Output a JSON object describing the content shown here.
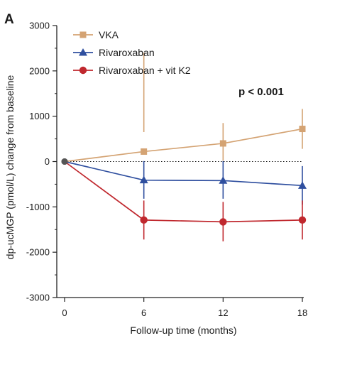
{
  "panel_label": "A",
  "annotation": "p < 0.001",
  "chart_data": {
    "type": "line",
    "title": "",
    "xlabel": "Follow-up time (months)",
    "ylabel": "dp-ucMGP (pmol/L) change from baseline",
    "x": [
      0,
      6,
      12,
      18
    ],
    "x_ticks": [
      "0",
      "6",
      "12",
      "18"
    ],
    "xlim": [
      0,
      18
    ],
    "ylim": [
      -3000,
      3000
    ],
    "y_ticks": [
      "3000",
      "2000",
      "1000",
      "0",
      "-1000",
      "-2000",
      "-3000"
    ],
    "y_tick_values": [
      3000,
      2000,
      1000,
      0,
      -1000,
      -2000,
      -3000
    ],
    "reference_line": 0,
    "grid": false,
    "legend_position": "top-left",
    "series": [
      {
        "name": "VKA",
        "color": "#d4a373",
        "marker": "square",
        "values": [
          0,
          220,
          400,
          720
        ],
        "err_lower": [
          0,
          2400,
          20,
          280
        ],
        "err_upper": [
          0,
          650,
          850,
          1160
        ]
      },
      {
        "name": "Rivaroxaban",
        "color": "#2f4f9f",
        "marker": "triangle",
        "values": [
          0,
          -410,
          -420,
          -530
        ],
        "err_lower": [
          0,
          -820,
          -820,
          -950
        ],
        "err_upper": [
          0,
          10,
          10,
          -100
        ]
      },
      {
        "name": "Rivaroxaban + vit K2",
        "color": "#c0282e",
        "marker": "circle",
        "values": [
          0,
          -1290,
          -1330,
          -1290
        ],
        "err_lower": [
          0,
          -1720,
          -1760,
          -1720
        ],
        "err_upper": [
          0,
          -860,
          -890,
          -860
        ]
      }
    ]
  }
}
